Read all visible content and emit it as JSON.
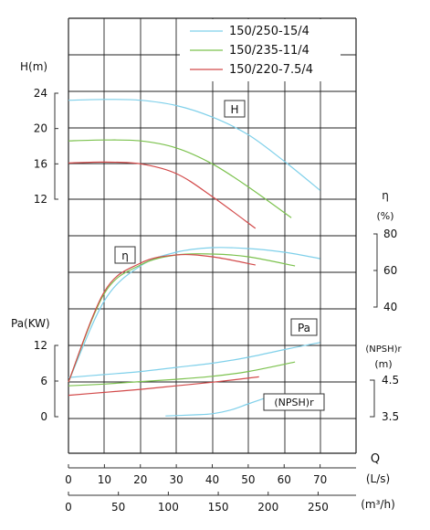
{
  "chart_data": {
    "type": "line",
    "legend": {
      "placement": "top-right",
      "entries": [
        {
          "name": "150/250-15/4",
          "color": "#7fd0ea"
        },
        {
          "name": "150/235-11/4",
          "color": "#7cc24e"
        },
        {
          "name": "150/220-7.5/4",
          "color": "#d24a4a"
        }
      ]
    },
    "grid": true,
    "x_flow": {
      "label": "Q",
      "unit": "(L/s)",
      "ticks": [
        "0",
        "10",
        "20",
        "30",
        "40",
        "50",
        "60",
        "70"
      ],
      "range": [
        0,
        80
      ]
    },
    "x_flow_m3h": {
      "unit": "(m³/h)",
      "ticks": [
        "0",
        "50",
        "100",
        "150",
        "200",
        "250"
      ],
      "range": [
        0,
        288
      ]
    },
    "axes": {
      "head": {
        "label": "H(m)",
        "ticks": [
          "24",
          "20",
          "16",
          "12"
        ],
        "range": [
          12,
          24
        ]
      },
      "efficiency": {
        "label": "η",
        "unit": "(%)",
        "ticks": [
          "80",
          "60",
          "40"
        ],
        "range": [
          40,
          80
        ]
      },
      "power": {
        "label": "Pa(KW)",
        "ticks": [
          "12",
          "6",
          "0"
        ],
        "range": [
          0,
          12
        ]
      },
      "npsh": {
        "label": "(NPSH)r",
        "unit": "(m)",
        "ticks": [
          "4.5",
          "3.5"
        ],
        "range": [
          3.5,
          4.5
        ]
      }
    },
    "curve_tags": {
      "head": "H",
      "efficiency": "η",
      "power": "Pa",
      "npsh": "(NPSH)r"
    },
    "series": [
      {
        "name": "150/250-15/4",
        "color": "#7fd0ea",
        "head": {
          "x": [
            0,
            10,
            20,
            30,
            40,
            50,
            60,
            70
          ],
          "y": [
            23.2,
            23.3,
            23.2,
            22.6,
            21.3,
            19.3,
            16.3,
            13.0
          ]
        },
        "efficiency": {
          "x": [
            0,
            10,
            20,
            30,
            40,
            50,
            60,
            70
          ],
          "y": [
            0,
            43.5,
            62.5,
            70,
            72.5,
            72,
            70,
            66.5
          ]
        },
        "power": {
          "x": [
            0,
            10,
            20,
            30,
            40,
            50,
            60,
            70
          ],
          "y": [
            6.6,
            7.1,
            7.6,
            8.3,
            9.0,
            10.0,
            11.3,
            12.5
          ]
        },
        "npsh": {
          "x": [
            27,
            35,
            40,
            45,
            50,
            55
          ],
          "y": [
            3.52,
            3.55,
            3.58,
            3.68,
            3.85,
            4.02
          ]
        }
      },
      {
        "name": "150/235-11/4",
        "color": "#7cc24e",
        "head": {
          "x": [
            0,
            10,
            20,
            30,
            40,
            50,
            62
          ],
          "y": [
            18.6,
            18.7,
            18.6,
            17.8,
            16.0,
            13.4,
            9.9
          ]
        },
        "efficiency": {
          "x": [
            0,
            10,
            20,
            30,
            40,
            50,
            63
          ],
          "y": [
            0,
            47.5,
            63,
            68.5,
            69,
            67.5,
            62.5
          ]
        },
        "power": {
          "x": [
            0,
            10,
            20,
            30,
            40,
            50,
            63
          ],
          "y": [
            5.2,
            5.5,
            5.9,
            6.3,
            6.8,
            7.6,
            9.2
          ]
        }
      },
      {
        "name": "150/220-7.5/4",
        "color": "#d24a4a",
        "head": {
          "x": [
            0,
            10,
            20,
            30,
            40,
            52
          ],
          "y": [
            16.1,
            16.2,
            16.0,
            14.9,
            12.3,
            8.7
          ]
        },
        "efficiency": {
          "x": [
            0,
            10,
            20,
            30,
            40,
            52
          ],
          "y": [
            0,
            48.5,
            64,
            68.5,
            67.5,
            63
          ]
        },
        "power": {
          "x": [
            0,
            10,
            20,
            30,
            40,
            53
          ],
          "y": [
            3.6,
            4.1,
            4.6,
            5.2,
            5.8,
            6.7
          ]
        }
      }
    ]
  }
}
